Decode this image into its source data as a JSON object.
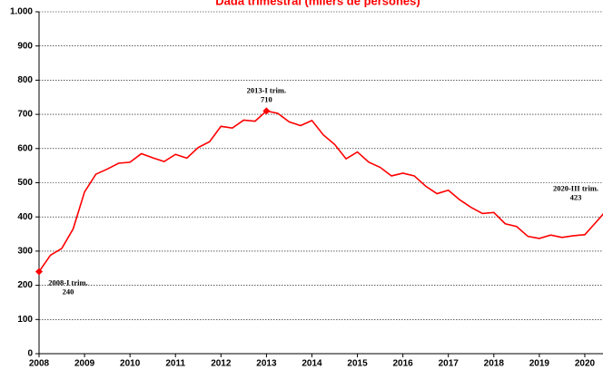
{
  "chart_data": {
    "type": "line",
    "title": "Dada trimestral (milers de persones)",
    "categories": [
      "2008",
      null,
      null,
      null,
      "2009",
      null,
      null,
      null,
      "2010",
      null,
      null,
      null,
      "2011",
      null,
      null,
      null,
      "2012",
      null,
      null,
      null,
      "2013",
      null,
      null,
      null,
      "2014",
      null,
      null,
      null,
      "2015",
      null,
      null,
      null,
      "2016",
      null,
      null,
      null,
      "2017",
      null,
      null,
      null,
      "2018",
      null,
      null,
      null,
      "2019",
      null,
      null,
      null,
      "2020",
      null,
      null
    ],
    "series": [
      {
        "name": null,
        "color": "#ff0000",
        "values": [
          240,
          288,
          308,
          365,
          473,
          525,
          540,
          557,
          560,
          585,
          573,
          562,
          583,
          572,
          603,
          620,
          665,
          660,
          683,
          680,
          710,
          703,
          678,
          667,
          682,
          640,
          612,
          570,
          590,
          560,
          545,
          520,
          528,
          520,
          490,
          468,
          478,
          450,
          428,
          410,
          413,
          380,
          372,
          343,
          337,
          347,
          340,
          345,
          348,
          385,
          423
        ],
        "point_labels": [
          "2008-I trim.",
          null,
          null,
          null,
          null,
          null,
          null,
          null,
          null,
          null,
          null,
          null,
          null,
          null,
          null,
          null,
          null,
          null,
          null,
          null,
          "2013-I trim.",
          null,
          null,
          null,
          null,
          null,
          null,
          null,
          null,
          null,
          null,
          null,
          null,
          null,
          null,
          null,
          null,
          null,
          null,
          null,
          null,
          null,
          null,
          null,
          null,
          null,
          null,
          null,
          null,
          null,
          "2020-III trim."
        ],
        "value_labels": [
          "240",
          null,
          null,
          null,
          null,
          null,
          null,
          null,
          null,
          null,
          null,
          null,
          null,
          null,
          null,
          null,
          null,
          null,
          null,
          null,
          "710",
          null,
          null,
          null,
          null,
          null,
          null,
          null,
          null,
          null,
          null,
          null,
          null,
          null,
          null,
          null,
          null,
          null,
          null,
          null,
          null,
          null,
          null,
          null,
          null,
          null,
          null,
          null,
          null,
          null,
          "423"
        ]
      }
    ],
    "ylim": [
      0,
      1000
    ],
    "yticks": [
      0,
      100,
      200,
      300,
      400,
      500,
      600,
      700,
      800,
      900,
      {
        "value": 1000,
        "label": "1.000"
      }
    ],
    "grid": true
  }
}
